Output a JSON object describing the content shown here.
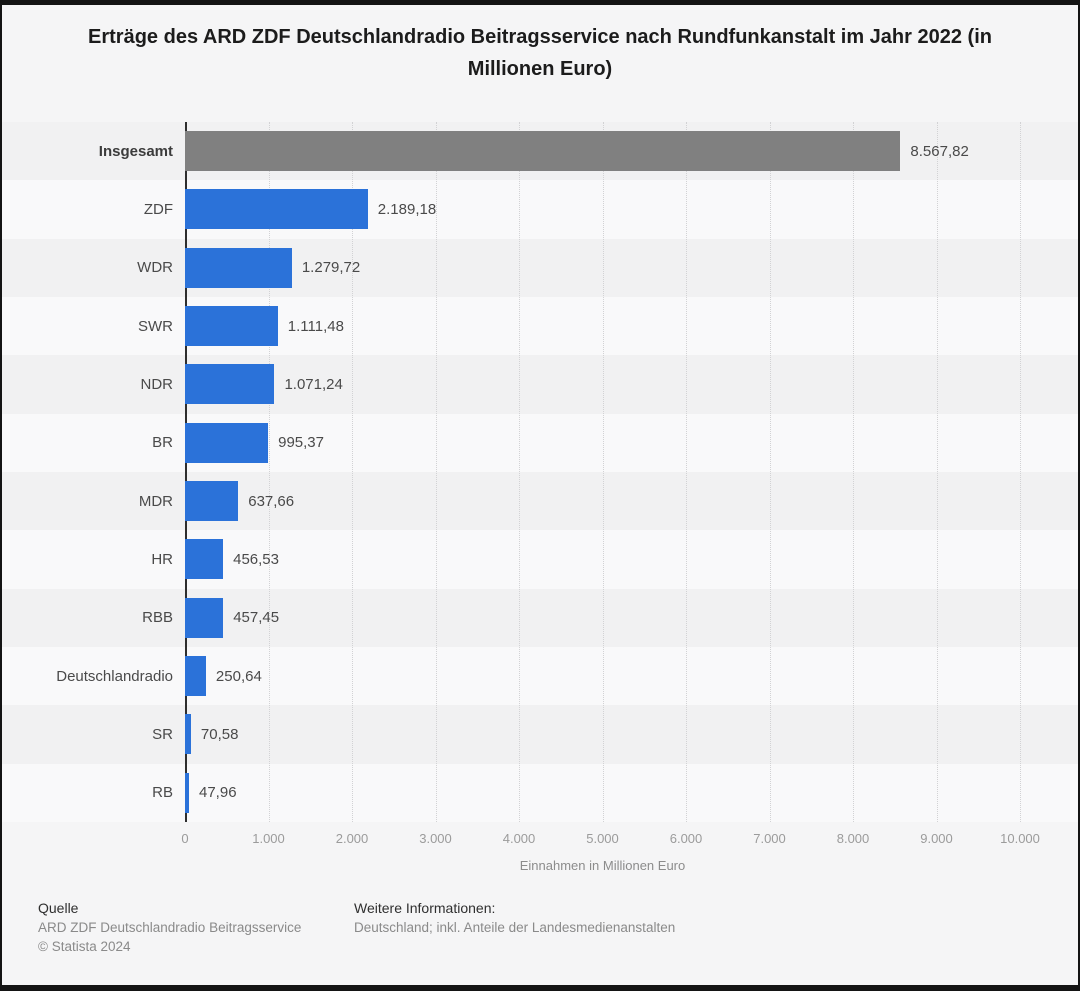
{
  "chart_data": {
    "type": "bar",
    "orientation": "horizontal",
    "title": "Erträge des ARD ZDF Deutschlandradio Beitragsservice nach Rundfunkanstalt im Jahr 2022 (in Millionen Euro)",
    "categories": [
      "Insgesamt",
      "ZDF",
      "WDR",
      "SWR",
      "NDR",
      "BR",
      "MDR",
      "HR",
      "RBB",
      "Deutschlandradio",
      "SR",
      "RB"
    ],
    "values": [
      8567.82,
      2189.18,
      1279.72,
      1111.48,
      1071.24,
      995.37,
      637.66,
      456.53,
      457.45,
      250.64,
      70.58,
      47.96
    ],
    "value_labels": [
      "8.567,82",
      "2.189,18",
      "1.279,72",
      "1.111,48",
      "1.071,24",
      "995,37",
      "637,66",
      "456,53",
      "457,45",
      "250,64",
      "70,58",
      "47,96"
    ],
    "xlabel": "Einnahmen in Millionen Euro",
    "xlim": [
      0,
      10000
    ],
    "x_ticks": [
      "0",
      "1.000",
      "2.000",
      "3.000",
      "4.000",
      "5.000",
      "6.000",
      "7.000",
      "8.000",
      "9.000",
      "10.000"
    ],
    "grid": "vertical-dotted",
    "legend": null,
    "bar_color": "#2b72d9",
    "highlight_index": 0,
    "highlight_color": "#808080"
  },
  "footer": {
    "source_heading": "Quelle",
    "source_line1": "ARD ZDF Deutschlandradio Beitragsservice",
    "source_line2": "© Statista 2024",
    "info_heading": "Weitere Informationen:",
    "info_line1": "Deutschland; inkl. Anteile der Landesmedienanstalten"
  }
}
